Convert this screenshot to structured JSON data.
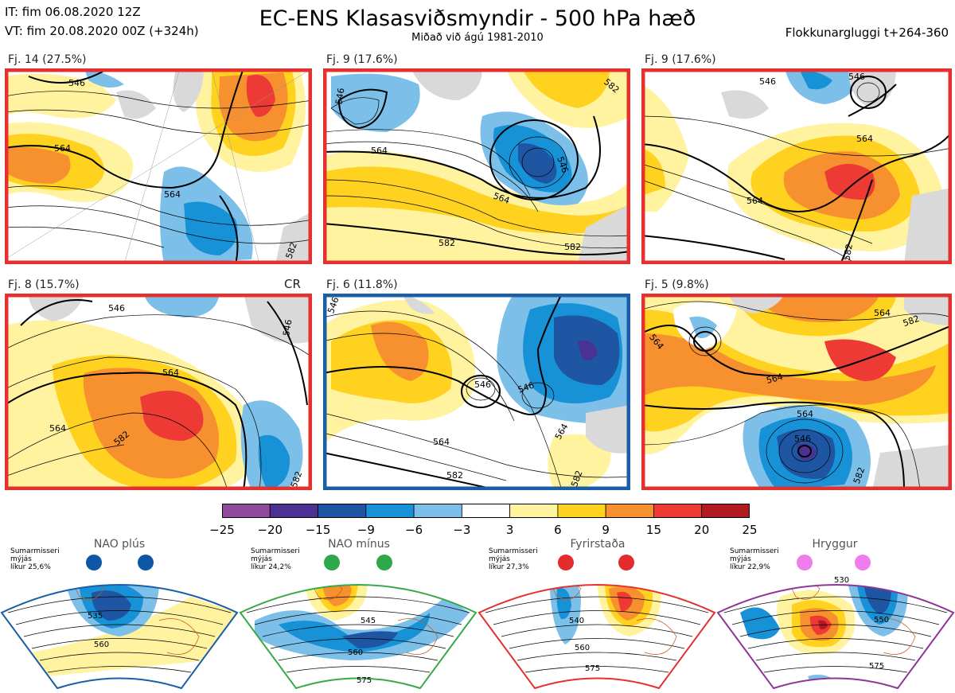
{
  "header": {
    "init_time": "IT: fim 06.08.2020 12Z",
    "valid_time": "VT: fim 20.08.2020 00Z  (+324h)",
    "title": "EC-ENS Klasasviðsmyndir - 500 hPa hæð",
    "subtitle": "Miðað við ágú 1981-2010",
    "cluster_window": "Flokkunargluggi t+264-360"
  },
  "panels": [
    {
      "label": "Fj. 14 (27.5%)",
      "frame_color": "#e53030",
      "contours": [
        "546",
        "564",
        "564",
        "582"
      ]
    },
    {
      "label": "Fj. 9 (17.6%)",
      "frame_color": "#e53030",
      "contours": [
        "546",
        "564",
        "546",
        "564",
        "582",
        "582",
        "582"
      ]
    },
    {
      "label": "Fj. 9 (17.6%)",
      "frame_color": "#e53030",
      "contours": [
        "546",
        "546",
        "564",
        "564",
        "582"
      ]
    },
    {
      "label": "Fj. 8 (15.7%)",
      "frame_color": "#e53030",
      "contours": [
        "546",
        "546",
        "564",
        "564",
        "582",
        "582"
      ],
      "tag": "CR"
    },
    {
      "label": "Fj. 6 (11.8%)",
      "frame_color": "#1a5ea8",
      "contours": [
        "546",
        "546",
        "546",
        "564",
        "564",
        "582",
        "582"
      ]
    },
    {
      "label": "Fj. 5 (9.8%)",
      "frame_color": "#e53030",
      "contours": [
        "564",
        "564",
        "564",
        "564",
        "546",
        "582",
        "582"
      ]
    }
  ],
  "colorbar": {
    "ticks": [
      "−25",
      "−20",
      "−15",
      "−9",
      "−6",
      "−3",
      "3",
      "6",
      "9",
      "15",
      "20",
      "25"
    ],
    "colors": [
      "#8e4a9e",
      "#4b3191",
      "#1f56a3",
      "#1892d6",
      "#7cc0ea",
      "#ffffff",
      "#fff3a0",
      "#ffd21f",
      "#f7902f",
      "#ed3a35",
      "#b11a21"
    ]
  },
  "regimes": [
    {
      "title": "NAO plús",
      "text": [
        "Sumarmisseri",
        "mýjás",
        "líkur 25,6%"
      ],
      "frame_color": "#1a5ea8",
      "dot_color": "#0e57a6",
      "contours": [
        "535",
        "560"
      ]
    },
    {
      "title": "NAO mínus",
      "text": [
        "Sumarmisseri",
        "mýjás",
        "líkur 24,2%"
      ],
      "frame_color": "#37a948",
      "dot_color": "#2ea84a",
      "contours": [
        "545",
        "560",
        "575"
      ]
    },
    {
      "title": "Fyrirstaða",
      "text": [
        "Sumarmisseri",
        "mýjás",
        "líkur 27,3%"
      ],
      "frame_color": "#e53030",
      "dot_color": "#e52b2b",
      "contours": [
        "540",
        "560",
        "575"
      ]
    },
    {
      "title": "Hryggur",
      "text": [
        "Sumarmisseri",
        "mýjás",
        "líkur 22,9%"
      ],
      "frame_color": "#8e3596",
      "dot_color": "#ee7ced",
      "contours": [
        "530",
        "550",
        "575"
      ]
    }
  ]
}
